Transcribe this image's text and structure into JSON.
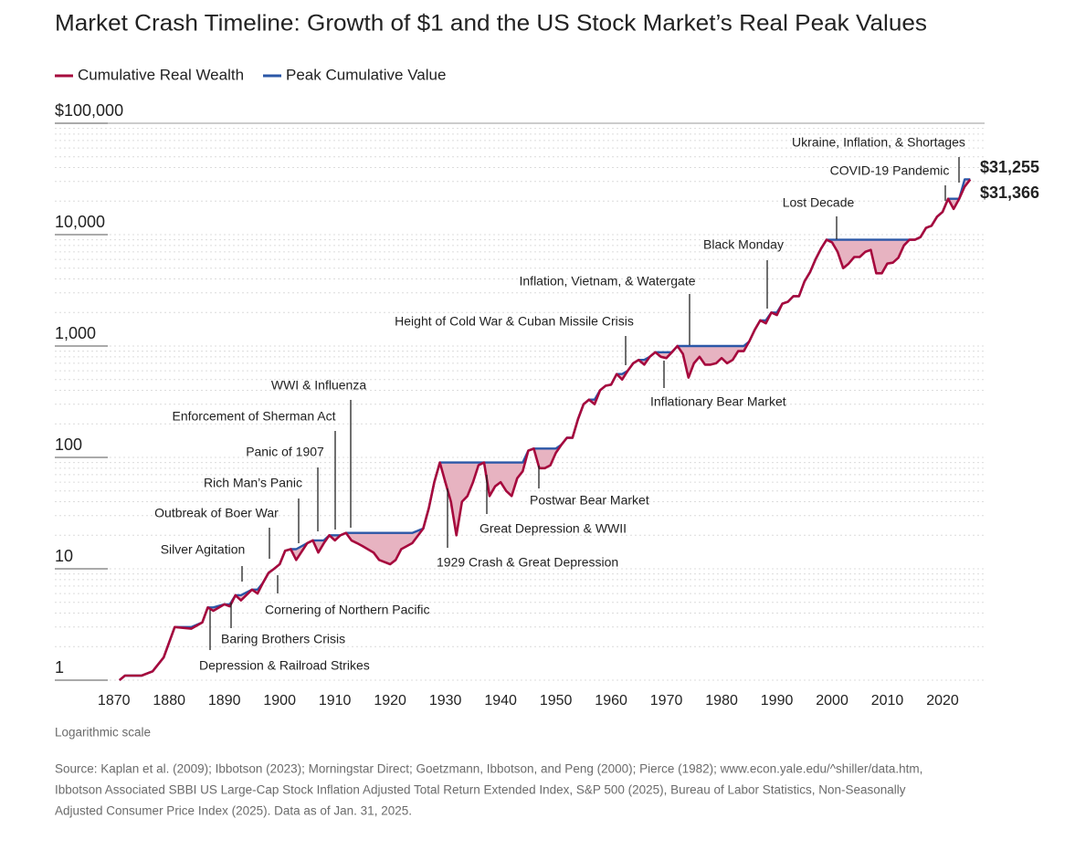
{
  "chart_data": {
    "type": "line",
    "title": "Market Crash Timeline: Growth of $1 and the US Stock Market’s Real Peak Values",
    "log_scale": true,
    "note": "Logarithmic scale",
    "source_lines": [
      "Source: Kaplan et al. (2009); Ibbotson (2023); Morningstar Direct; Goetzmann, Ibbotson, and Peng (2000); Pierce (1982); www.econ.yale.edu/^shiller/data.htm,",
      "Ibbotson Associated SBBI US Large-Cap Stock Inflation Adjusted Total Return Extended Index, S&P 500 (2025), Bureau of Labor Statistics, Non-Seasonally",
      "Adjusted Consumer Price Index (2025). Data as of Jan. 31, 2025."
    ],
    "xlim": [
      1859.3,
      2027.6
    ],
    "xticks": [
      1870,
      1880,
      1890,
      1900,
      1910,
      1920,
      1930,
      1940,
      1950,
      1960,
      1970,
      1980,
      1990,
      2000,
      2010,
      2020
    ],
    "ylim": [
      1,
      100000
    ],
    "yticks": [
      1,
      10,
      100,
      {
        "value": 1000,
        "label": "1,000"
      },
      {
        "value": 10000,
        "label": "10,000"
      },
      {
        "value": 100000,
        "label": "$100,000"
      }
    ],
    "minor_yticks": [
      2,
      3,
      4,
      5,
      6,
      7,
      8,
      9,
      20,
      30,
      40,
      50,
      60,
      70,
      80,
      90,
      200,
      300,
      400,
      500,
      600,
      700,
      800,
      900,
      2000,
      3000,
      4000,
      5000,
      6000,
      7000,
      8000,
      9000,
      20000,
      30000,
      40000,
      50000,
      60000,
      70000,
      80000,
      90000
    ],
    "fill_color": "#e7b3c1",
    "x": [
      1871,
      1872,
      1875,
      1877,
      1879,
      1881,
      1884,
      1886,
      1887,
      1888,
      1890,
      1891,
      1892,
      1893,
      1895,
      1896,
      1897,
      1898,
      1899,
      1900,
      1901,
      1902,
      1903,
      1905,
      1906,
      1907,
      1908,
      1909,
      1910,
      1911,
      1912,
      1913,
      1914,
      1915,
      1917,
      1918,
      1920,
      1921,
      1922,
      1924,
      1926,
      1927,
      1928,
      1929,
      1930,
      1931,
      1932,
      1933,
      1934,
      1935,
      1936,
      1937,
      1938,
      1939,
      1940,
      1941,
      1942,
      1943,
      1944,
      1945,
      1946,
      1947,
      1948,
      1949,
      1950,
      1951,
      1952,
      1953,
      1954,
      1955,
      1956,
      1957,
      1958,
      1959,
      1960,
      1961,
      1962,
      1963,
      1964,
      1965,
      1966,
      1967,
      1968,
      1969,
      1970,
      1971,
      1972,
      1973,
      1974,
      1975,
      1976,
      1977,
      1978,
      1979,
      1980,
      1981,
      1982,
      1983,
      1984,
      1985,
      1986,
      1987,
      1988,
      1989,
      1990,
      1991,
      1992,
      1993,
      1994,
      1995,
      1996,
      1997,
      1998,
      1999,
      2000,
      2001,
      2002,
      2003,
      2004,
      2005,
      2006,
      2007,
      2008,
      2009,
      2010,
      2011,
      2012,
      2013,
      2014,
      2015,
      2016,
      2017,
      2018,
      2019,
      2020,
      2021,
      2022,
      2023,
      2024,
      2025
    ],
    "series": [
      {
        "name": "Peak Cumulative Value",
        "color": "#2b57a7",
        "end_label": "$31,366",
        "values": [
          1.0,
          1.1,
          1.1,
          1.2,
          1.6,
          3.0,
          3.0,
          3.3,
          4.5,
          4.5,
          4.8,
          4.8,
          5.8,
          5.8,
          6.5,
          6.5,
          7.5,
          9.2,
          10,
          11,
          14.5,
          15,
          15,
          17,
          18,
          18,
          18,
          20,
          20,
          20,
          21,
          21,
          21,
          21,
          21,
          21,
          21,
          21,
          21,
          21,
          23,
          35,
          60,
          90,
          90,
          90,
          90,
          90,
          90,
          90,
          90,
          90,
          90,
          90,
          90,
          90,
          90,
          90,
          90,
          115,
          120,
          120,
          120,
          120,
          120,
          130,
          150,
          150,
          220,
          300,
          330,
          330,
          400,
          440,
          450,
          560,
          560,
          600,
          700,
          750,
          750,
          800,
          880,
          880,
          880,
          880,
          1000,
          1000,
          1000,
          1000,
          1000,
          1000,
          1000,
          1000,
          1000,
          1000,
          1000,
          1000,
          1000,
          1100,
          1400,
          1700,
          1700,
          2000,
          2000,
          2400,
          2500,
          2800,
          2800,
          3800,
          4600,
          6000,
          7500,
          9000,
          9000,
          9000,
          9000,
          9000,
          9000,
          9000,
          9000,
          9000,
          9000,
          9000,
          9000,
          9000,
          9000,
          9000,
          9000,
          9000,
          9500,
          11500,
          12000,
          14500,
          16000,
          21000,
          21000,
          21000,
          31366,
          31366
        ]
      },
      {
        "name": "Cumulative Real Wealth",
        "color": "#a6093d",
        "end_label": "$31,255",
        "values": [
          1.0,
          1.1,
          1.1,
          1.2,
          1.6,
          3.0,
          2.9,
          3.3,
          4.5,
          4.2,
          4.8,
          4.6,
          5.8,
          5.2,
          6.5,
          6.0,
          7.5,
          9.2,
          10,
          11,
          14.5,
          15,
          12,
          17,
          18,
          14,
          17,
          20,
          18,
          20,
          21,
          18,
          17,
          16,
          14,
          12,
          11,
          12,
          15,
          17,
          23,
          35,
          60,
          90,
          60,
          40,
          20,
          40,
          45,
          60,
          85,
          90,
          45,
          55,
          60,
          50,
          45,
          65,
          75,
          115,
          120,
          80,
          80,
          85,
          110,
          130,
          150,
          150,
          220,
          300,
          330,
          300,
          400,
          440,
          450,
          560,
          500,
          600,
          700,
          750,
          680,
          800,
          880,
          800,
          780,
          880,
          1000,
          850,
          520,
          700,
          800,
          680,
          680,
          700,
          780,
          700,
          750,
          900,
          900,
          1100,
          1400,
          1700,
          1600,
          2000,
          1900,
          2400,
          2500,
          2800,
          2800,
          3800,
          4600,
          6000,
          7500,
          9000,
          8500,
          7000,
          5000,
          5500,
          6300,
          6300,
          7000,
          7300,
          4500,
          4500,
          5500,
          5600,
          6200,
          8000,
          9000,
          9000,
          9500,
          11500,
          12000,
          14500,
          16000,
          21000,
          17000,
          21000,
          27000,
          31255
        ]
      }
    ],
    "annotations": [
      "Ukraine, Inflation, & Shortages",
      "COVID-19 Pandemic",
      "Lost Decade",
      "Black Monday",
      "Inflation, Vietnam, & Watergate",
      "Height of Cold War & Cuban Missile Crisis",
      "Inflationary Bear Market",
      "WWI & Influenza",
      "Enforcement of Sherman Act",
      "Panic of 1907",
      "Rich Man’s Panic",
      "Outbreak of Boer War",
      "Silver Agitation",
      "Cornering of Northern Pacific",
      "Baring Brothers Crisis",
      "Depression & Railroad Strikes",
      "1929 Crash & Great Depression",
      "Great Depression & WWII",
      "Postwar Bear Market"
    ]
  }
}
